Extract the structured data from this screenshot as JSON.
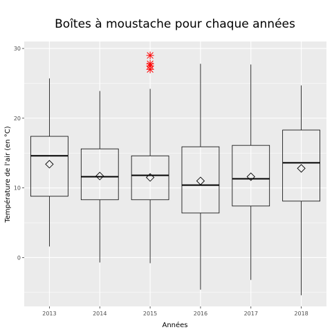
{
  "chart_data": {
    "type": "boxplot",
    "title": "Boîtes à moustache pour chaque années",
    "xlabel": "Années",
    "ylabel": "Température de l'air (en °C)",
    "categories": [
      "2013",
      "2014",
      "2015",
      "2016",
      "2017",
      "2018"
    ],
    "yticks": [
      0,
      10,
      20,
      30
    ],
    "ylim": [
      -7,
      31
    ],
    "grid": true,
    "boxes": [
      {
        "category": "2013",
        "whisker_low": 1.6,
        "q1": 8.8,
        "median": 14.6,
        "q3": 17.4,
        "whisker_high": 25.7,
        "mean": 13.4,
        "outliers": []
      },
      {
        "category": "2014",
        "whisker_low": -0.7,
        "q1": 8.3,
        "median": 11.6,
        "q3": 15.6,
        "whisker_high": 23.9,
        "mean": 11.7,
        "outliers": []
      },
      {
        "category": "2015",
        "whisker_low": -0.8,
        "q1": 8.3,
        "median": 11.8,
        "q3": 14.6,
        "whisker_high": 24.2,
        "mean": 11.5,
        "outliers": [
          27.0,
          27.5,
          27.8,
          29.0
        ]
      },
      {
        "category": "2016",
        "whisker_low": -4.6,
        "q1": 6.4,
        "median": 10.4,
        "q3": 15.9,
        "whisker_high": 27.8,
        "mean": 11.0,
        "outliers": []
      },
      {
        "category": "2017",
        "whisker_low": -3.2,
        "q1": 7.4,
        "median": 11.3,
        "q3": 16.1,
        "whisker_high": 27.7,
        "mean": 11.6,
        "outliers": []
      },
      {
        "category": "2018",
        "whisker_low": -5.4,
        "q1": 8.1,
        "median": 13.6,
        "q3": 18.3,
        "whisker_high": 24.7,
        "mean": 12.8,
        "outliers": []
      }
    ],
    "colors": {
      "panel_background": "#ebebeb",
      "grid_major": "#ffffff",
      "box_line": "#000000",
      "outlier": "#ff0000",
      "tick": "#333333"
    }
  }
}
